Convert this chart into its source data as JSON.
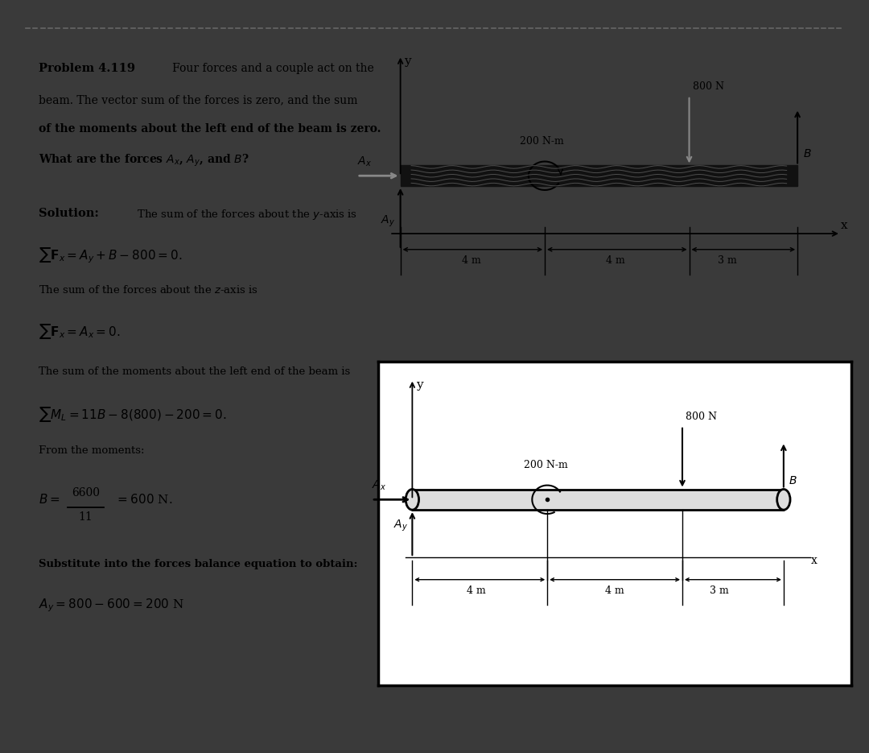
{
  "outer_bg": "#3a3a3a",
  "page_bg": "#ffffff",
  "dashed_color": "#555555",
  "beam1_color": "#1a1a1a",
  "beam2_color": "#cccccc",
  "text_color": "#000000",
  "problem_title": "Problem 4.119",
  "line1": "Four forces and a couple act on the",
  "line2": "beam. The vector sum of the forces is zero, and the sum",
  "line3": "of the moments about the left end of the beam is zero.",
  "line4": "What are the forces $A_x$, $A_y$, and $B$?",
  "sol_label": "Solution:",
  "sol_text": "The sum of the forces about the $y$-axis is",
  "eq1": "$\\sum{\\bf F}_x = A_y + B - 800 = 0.$",
  "text2": "The sum of the forces about the $z$-axis is",
  "eq2": "$\\sum{\\bf F}_x = A_x = 0.$",
  "text3": "The sum of the moments about the left end of the beam is",
  "eq3": "$\\sum M_L = 11B - 8(800) - 200 = 0.$",
  "text4": "From the moments:",
  "text5": "Substitute into the forces balance equation to obtain:",
  "eq5": "$A_y = 800 - 600 = 200$ N"
}
